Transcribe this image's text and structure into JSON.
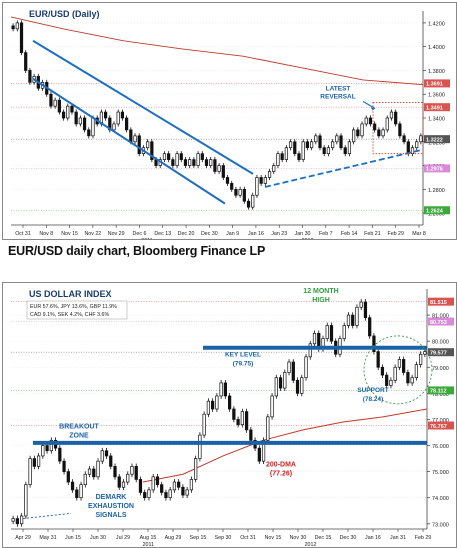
{
  "caption": "EUR/USD daily chart, Bloomberg Finance LP",
  "colors": {
    "up": "#ffffff",
    "down": "#111111",
    "channel": "#1f6fc1",
    "dma": "#c0392b",
    "keylevel": "#1a62a8",
    "annot_blue": "#1a62a8",
    "annot_green": "#2e9e3f",
    "annot_red": "#cc2222",
    "grid": "#cfcfcf"
  },
  "chart_data": [
    {
      "type": "candlestick",
      "title": "EUR/USD (Daily)",
      "ylim": [
        1.25,
        1.43
      ],
      "yticks": [
        {
          "v": 1.42,
          "label": "1.4200"
        },
        {
          "v": 1.4,
          "label": "1.4000"
        },
        {
          "v": 1.38,
          "label": "1.3800"
        },
        {
          "v": 1.36,
          "label": "1.3600"
        },
        {
          "v": 1.34,
          "label": "1.3400"
        },
        {
          "v": 1.32,
          "label": "1.3200"
        },
        {
          "v": 1.3,
          "label": "1.3000"
        },
        {
          "v": 1.28,
          "label": "1.2800"
        },
        {
          "v": 1.26,
          "label": "1.2600"
        }
      ],
      "price_tags": [
        {
          "v": 1.3691,
          "label": "1.3691",
          "color": "#d9534f"
        },
        {
          "v": 1.3491,
          "label": "1.3491",
          "color": "#d9534f"
        },
        {
          "v": 1.3222,
          "label": "1.3222",
          "color": "#555555"
        },
        {
          "v": 1.2976,
          "label": "1.2976",
          "color": "#d98ad9"
        },
        {
          "v": 1.2624,
          "label": "1.2624",
          "color": "#3aaa3a"
        }
      ],
      "xlabels": [
        "Oct 31",
        "Nov 8",
        "Nov 15",
        "Nov 22",
        "Nov 29",
        "Dec 6",
        "Dec 13",
        "Dec 20",
        "Dec 30",
        "Jan 9",
        "Jan 16",
        "Jan 23",
        "Jan 30",
        "Feb 7",
        "Feb 14",
        "Feb 21",
        "Feb 29",
        "Mar 8"
      ],
      "year_labels": [
        "2011",
        "2012"
      ],
      "series": [
        {
          "name": "EUR/USD",
          "close": [
            1.415,
            1.42,
            1.395,
            1.38,
            1.37,
            1.375,
            1.365,
            1.37,
            1.36,
            1.35,
            1.355,
            1.345,
            1.34,
            1.35,
            1.345,
            1.335,
            1.34,
            1.33,
            1.325,
            1.34,
            1.335,
            1.345,
            1.34,
            1.33,
            1.335,
            1.345,
            1.34,
            1.33,
            1.32,
            1.325,
            1.31,
            1.315,
            1.32,
            1.305,
            1.3,
            1.305,
            1.31,
            1.305,
            1.3,
            1.31,
            1.305,
            1.3,
            1.305,
            1.3,
            1.31,
            1.305,
            1.3,
            1.305,
            1.295,
            1.3,
            1.29,
            1.285,
            1.28,
            1.275,
            1.28,
            1.27,
            1.265,
            1.275,
            1.29,
            1.285,
            1.29,
            1.295,
            1.3,
            1.31,
            1.305,
            1.315,
            1.32,
            1.31,
            1.305,
            1.32,
            1.315,
            1.32,
            1.325,
            1.315,
            1.31,
            1.315,
            1.32,
            1.325,
            1.315,
            1.31,
            1.32,
            1.33,
            1.325,
            1.335,
            1.34,
            1.335,
            1.33,
            1.325,
            1.33,
            1.34,
            1.345,
            1.335,
            1.325,
            1.32,
            1.31,
            1.315,
            1.32,
            1.325
          ]
        }
      ],
      "annotations": [
        {
          "text_lines": [
            "LATEST",
            "REVERSAL"
          ]
        }
      ]
    },
    {
      "type": "candlestick",
      "title": "US DOLLAR INDEX",
      "weights": [
        "EUR 57.6%, JPY 13.6%, GBP 11.9%",
        "CAD 9.1%, SEK 4.2%, CHF 3.6%"
      ],
      "ylim": [
        72.8,
        82.0
      ],
      "yticks": [
        {
          "v": 81.0,
          "label": "81.000"
        },
        {
          "v": 80.0,
          "label": "80.000"
        },
        {
          "v": 79.0,
          "label": "79.000"
        },
        {
          "v": 78.0,
          "label": "78.000"
        },
        {
          "v": 77.0,
          "label": "77.000"
        },
        {
          "v": 76.0,
          "label": "76.000"
        },
        {
          "v": 75.0,
          "label": "75.000"
        },
        {
          "v": 74.0,
          "label": "74.000"
        },
        {
          "v": 73.0,
          "label": "73.000"
        }
      ],
      "price_tags": [
        {
          "v": 81.515,
          "label": "81.515",
          "color": "#d9534f"
        },
        {
          "v": 80.753,
          "label": "80.753",
          "color": "#d98ad9"
        },
        {
          "v": 79.577,
          "label": "79.577",
          "color": "#555555"
        },
        {
          "v": 78.112,
          "label": "78.112",
          "color": "#3aaa3a"
        },
        {
          "v": 76.767,
          "label": "76.767",
          "color": "#d9534f"
        }
      ],
      "xlabels": [
        "Apr 29",
        "May 31",
        "Jun 15",
        "Jun 30",
        "Jul 29",
        "Aug 15",
        "Aug 29",
        "Sep 15",
        "Sep 30",
        "Oct 31",
        "Nov 15",
        "Nov 30",
        "Dec 15",
        "Dec 30",
        "Jan 16",
        "Jan 31",
        "Feb 29"
      ],
      "year_labels": [
        "2011",
        "2012"
      ],
      "series": [
        {
          "name": "USD Index",
          "close": [
            73.2,
            73.0,
            73.3,
            74.5,
            75.5,
            75.2,
            75.6,
            76.0,
            75.8,
            76.2,
            75.9,
            75.4,
            75.0,
            74.6,
            74.3,
            74.0,
            74.5,
            74.9,
            75.1,
            74.8,
            75.4,
            75.8,
            75.6,
            75.2,
            74.8,
            74.4,
            74.6,
            74.9,
            75.2,
            74.7,
            74.2,
            74.0,
            74.3,
            74.8,
            74.5,
            74.2,
            74.0,
            74.3,
            74.6,
            74.4,
            74.1,
            74.3,
            74.7,
            75.5,
            76.4,
            77.2,
            77.7,
            77.4,
            77.9,
            78.4,
            77.9,
            77.4,
            77.0,
            76.8,
            77.3,
            76.6,
            76.2,
            75.9,
            75.4,
            76.2,
            77.1,
            77.9,
            78.6,
            78.2,
            78.8,
            79.2,
            78.5,
            78.0,
            78.6,
            79.4,
            79.9,
            80.3,
            79.7,
            80.1,
            80.6,
            80.0,
            79.5,
            80.1,
            80.6,
            81.0,
            80.6,
            81.3,
            81.5,
            80.9,
            80.2,
            79.6,
            79.0,
            78.7,
            78.3,
            78.5,
            79.0,
            79.3,
            78.8,
            78.4,
            78.6,
            79.1,
            79.5,
            79.6
          ]
        }
      ],
      "dma_label": "200-DMA (77.26)",
      "annotations": [
        {
          "text_lines": [
            "12 MONTH",
            "HIGH"
          ]
        },
        {
          "text_lines": [
            "KEY LEVEL",
            "(79.75)"
          ]
        },
        {
          "text_lines": [
            "SUPPORT",
            "(78.24)"
          ]
        },
        {
          "text_lines": [
            "BREAKOUT",
            "ZONE"
          ]
        },
        {
          "text_lines": [
            "DEMARK",
            "EXHAUSTION",
            "SIGNALS"
          ]
        }
      ]
    }
  ]
}
